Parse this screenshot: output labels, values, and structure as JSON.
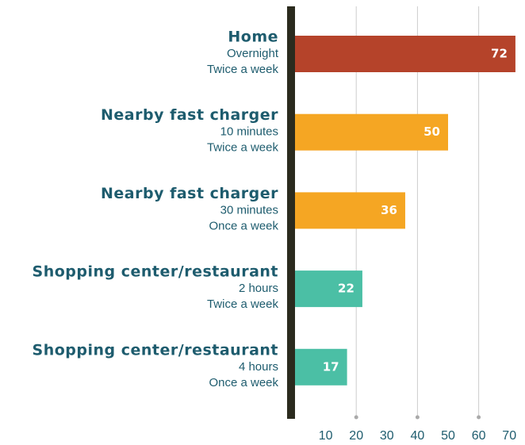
{
  "chart_data": {
    "type": "bar",
    "orientation": "horizontal",
    "categories": [
      "Home",
      "Nearby fast charger",
      "Nearby fast charger",
      "Shopping center/restaurant",
      "Shopping center/restaurant"
    ],
    "durations": [
      "Overnight",
      "10 minutes",
      "30 minutes",
      "2 hours",
      "4 hours"
    ],
    "frequencies": [
      "Twice a week",
      "Twice a week",
      "Once a week",
      "Twice a week",
      "Once a week"
    ],
    "values": [
      72,
      50,
      36,
      22,
      17
    ],
    "colors": [
      "#b5432a",
      "#f5a623",
      "#f5a623",
      "#4bbfa5",
      "#4bbfa5"
    ],
    "xlim": [
      0,
      75
    ],
    "xticks": [
      10,
      20,
      30,
      40,
      50,
      60,
      70
    ],
    "grid": true
  }
}
